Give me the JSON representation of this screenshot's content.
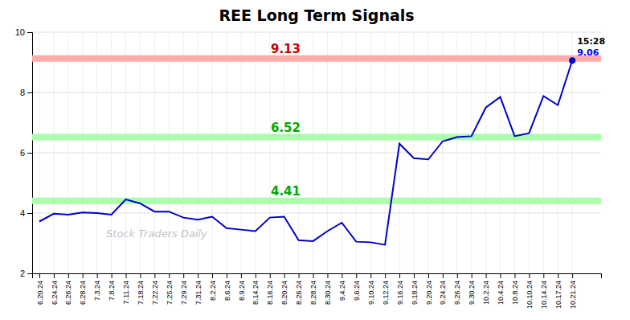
{
  "chart_data": {
    "type": "line",
    "title": "REE Long Term Signals",
    "categories": [
      "6.20.24",
      "6.24.24",
      "6.26.24",
      "6.28.24",
      "7.3.24",
      "7.8.24",
      "7.11.24",
      "7.18.24",
      "7.22.24",
      "7.25.24",
      "7.29.24",
      "7.31.24",
      "8.2.24",
      "8.6.24",
      "8.9.24",
      "8.14.24",
      "8.16.24",
      "8.20.24",
      "8.26.24",
      "8.28.24",
      "8.30.24",
      "9.4.24",
      "9.6.24",
      "9.10.24",
      "9.12.24",
      "9.16.24",
      "9.18.24",
      "9.20.24",
      "9.24.24",
      "9.26.24",
      "9.30.24",
      "10.2.24",
      "10.4.24",
      "10.8.24",
      "10.10.24",
      "10.14.24",
      "10.17.24",
      "10.21.24"
    ],
    "values": [
      3.72,
      3.98,
      3.95,
      4.02,
      4.0,
      3.95,
      4.45,
      4.32,
      4.05,
      4.05,
      3.85,
      3.78,
      3.88,
      3.5,
      3.45,
      3.4,
      3.85,
      3.88,
      3.1,
      3.07,
      3.4,
      3.68,
      3.05,
      3.03,
      2.95,
      6.3,
      5.82,
      5.78,
      6.38,
      6.52,
      6.55,
      7.5,
      7.85,
      6.55,
      6.65,
      7.88,
      7.58,
      9.06
    ],
    "color": "#0000cc",
    "ylim": [
      2,
      10
    ],
    "yticks": [
      2,
      4,
      6,
      8,
      10
    ],
    "grid": true,
    "reference_lines": [
      {
        "value": 9.13,
        "color": "#ffaaaa",
        "label_color": "#cc0000"
      },
      {
        "value": 6.52,
        "color": "#aaffaa",
        "label_color": "#00aa00"
      },
      {
        "value": 4.41,
        "color": "#aaffaa",
        "label_color": "#00aa00"
      }
    ],
    "annotations": [
      {
        "text": "15:28",
        "color": "#000000"
      },
      {
        "text": "9.06",
        "color": "#0000ff"
      }
    ],
    "watermark": "Stock Traders Daily"
  }
}
